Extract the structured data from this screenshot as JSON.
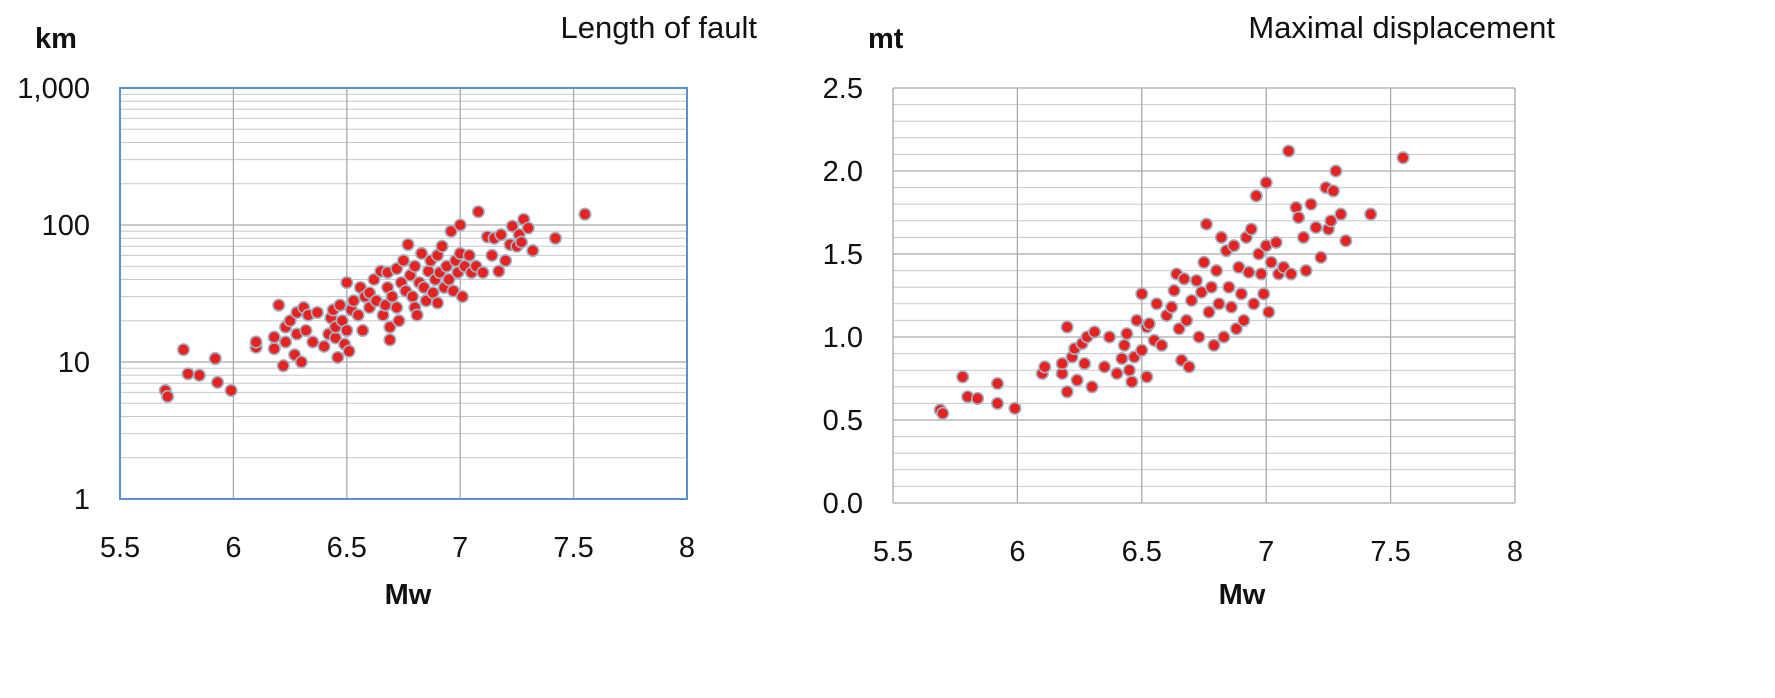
{
  "colors": {
    "point_fill": "#e8231f",
    "point_stroke": "#9fb3c9",
    "left_border": "#5b8fcf",
    "grid": "#a9a9a9"
  },
  "chart_data": [
    {
      "type": "scatter",
      "title": "Length of fault",
      "xlabel": "Mw",
      "ylabel": "km",
      "yscale": "log",
      "xlim": [
        5.5,
        8
      ],
      "ylim": [
        1,
        1000
      ],
      "xticks": [
        "5.5",
        "6",
        "6.5",
        "7",
        "7.5",
        "8"
      ],
      "yticks": [
        "1",
        "10",
        "100",
        "1,000"
      ],
      "grid": true,
      "legend": "none",
      "points": [
        [
          5.7,
          6.2
        ],
        [
          5.71,
          5.6
        ],
        [
          5.78,
          12.3
        ],
        [
          5.8,
          8.2
        ],
        [
          5.85,
          8.0
        ],
        [
          5.92,
          10.6
        ],
        [
          5.93,
          7.1
        ],
        [
          5.99,
          6.2
        ],
        [
          6.1,
          12.8
        ],
        [
          6.1,
          14.0
        ],
        [
          6.18,
          12.5
        ],
        [
          6.18,
          15.2
        ],
        [
          6.2,
          26.0
        ],
        [
          6.22,
          9.4
        ],
        [
          6.23,
          14.0
        ],
        [
          6.23,
          18.0
        ],
        [
          6.25,
          20.0
        ],
        [
          6.27,
          11.3
        ],
        [
          6.28,
          16.0
        ],
        [
          6.28,
          23.0
        ],
        [
          6.3,
          10.0
        ],
        [
          6.31,
          25.0
        ],
        [
          6.32,
          17.0
        ],
        [
          6.33,
          22.0
        ],
        [
          6.35,
          14.0
        ],
        [
          6.37,
          23.0
        ],
        [
          6.4,
          13.0
        ],
        [
          6.42,
          16.0
        ],
        [
          6.43,
          21.0
        ],
        [
          6.44,
          24.0
        ],
        [
          6.45,
          15.0
        ],
        [
          6.45,
          18.0
        ],
        [
          6.46,
          10.8
        ],
        [
          6.47,
          26.0
        ],
        [
          6.48,
          20.0
        ],
        [
          6.49,
          13.5
        ],
        [
          6.5,
          17.0
        ],
        [
          6.5,
          38.0
        ],
        [
          6.51,
          12.0
        ],
        [
          6.52,
          24.0
        ],
        [
          6.53,
          28.0
        ],
        [
          6.55,
          22.0
        ],
        [
          6.56,
          35.0
        ],
        [
          6.57,
          17.0
        ],
        [
          6.58,
          30.0
        ],
        [
          6.6,
          25.0
        ],
        [
          6.6,
          32.0
        ],
        [
          6.62,
          40.0
        ],
        [
          6.63,
          28.0
        ],
        [
          6.65,
          46.0
        ],
        [
          6.66,
          22.0
        ],
        [
          6.67,
          26.0
        ],
        [
          6.68,
          35.0
        ],
        [
          6.68,
          45.0
        ],
        [
          6.69,
          18.0
        ],
        [
          6.69,
          14.5
        ],
        [
          6.7,
          30.0
        ],
        [
          6.72,
          48.0
        ],
        [
          6.72,
          25.0
        ],
        [
          6.73,
          20.0
        ],
        [
          6.74,
          38.0
        ],
        [
          6.75,
          55.0
        ],
        [
          6.76,
          33.0
        ],
        [
          6.77,
          72.0
        ],
        [
          6.78,
          43.0
        ],
        [
          6.79,
          30.0
        ],
        [
          6.8,
          50.0
        ],
        [
          6.8,
          25.0
        ],
        [
          6.81,
          22.0
        ],
        [
          6.82,
          38.0
        ],
        [
          6.83,
          62.0
        ],
        [
          6.84,
          35.0
        ],
        [
          6.85,
          28.0
        ],
        [
          6.86,
          46.0
        ],
        [
          6.87,
          55.0
        ],
        [
          6.88,
          32.0
        ],
        [
          6.89,
          40.0
        ],
        [
          6.9,
          60.0
        ],
        [
          6.9,
          27.0
        ],
        [
          6.91,
          45.0
        ],
        [
          6.92,
          70.0
        ],
        [
          6.93,
          35.0
        ],
        [
          6.94,
          50.0
        ],
        [
          6.95,
          40.0
        ],
        [
          6.96,
          90.0
        ],
        [
          6.97,
          33.0
        ],
        [
          6.98,
          55.0
        ],
        [
          6.99,
          45.0
        ],
        [
          7.0,
          100.0
        ],
        [
          7.0,
          62.0
        ],
        [
          7.01,
          30.0
        ],
        [
          7.02,
          50.0
        ],
        [
          7.04,
          60.0
        ],
        [
          7.05,
          45.0
        ],
        [
          7.07,
          50.0
        ],
        [
          7.08,
          125.0
        ],
        [
          7.1,
          45.0
        ],
        [
          7.12,
          82.0
        ],
        [
          7.14,
          60.0
        ],
        [
          7.15,
          80.0
        ],
        [
          7.17,
          46.0
        ],
        [
          7.18,
          85.0
        ],
        [
          7.2,
          55.0
        ],
        [
          7.22,
          72.0
        ],
        [
          7.23,
          98.0
        ],
        [
          7.25,
          70.0
        ],
        [
          7.26,
          85.0
        ],
        [
          7.27,
          75.0
        ],
        [
          7.28,
          110.0
        ],
        [
          7.3,
          95.0
        ],
        [
          7.32,
          65.0
        ],
        [
          7.42,
          80.0
        ],
        [
          7.55,
          120.0
        ]
      ]
    },
    {
      "type": "scatter",
      "title": "Maximal displacement",
      "xlabel": "Mw",
      "ylabel": "mt",
      "yscale": "linear",
      "xlim": [
        5.5,
        8
      ],
      "ylim": [
        0,
        2.5
      ],
      "xticks": [
        "5.5",
        "6",
        "6.5",
        "7",
        "7.5",
        "8"
      ],
      "yticks": [
        "0.0",
        "0.5",
        "1.0",
        "1.5",
        "2.0",
        "2.5"
      ],
      "grid": true,
      "legend": "none",
      "points": [
        [
          5.69,
          0.56
        ],
        [
          5.7,
          0.54
        ],
        [
          5.78,
          0.76
        ],
        [
          5.8,
          0.64
        ],
        [
          5.84,
          0.63
        ],
        [
          5.92,
          0.72
        ],
        [
          5.92,
          0.6
        ],
        [
          5.99,
          0.57
        ],
        [
          6.1,
          0.78
        ],
        [
          6.11,
          0.82
        ],
        [
          6.18,
          0.78
        ],
        [
          6.18,
          0.84
        ],
        [
          6.2,
          1.06
        ],
        [
          6.2,
          0.67
        ],
        [
          6.22,
          0.88
        ],
        [
          6.23,
          0.93
        ],
        [
          6.24,
          0.74
        ],
        [
          6.26,
          0.96
        ],
        [
          6.27,
          0.84
        ],
        [
          6.28,
          1.0
        ],
        [
          6.3,
          0.7
        ],
        [
          6.31,
          1.03
        ],
        [
          6.35,
          0.82
        ],
        [
          6.37,
          1.0
        ],
        [
          6.4,
          0.78
        ],
        [
          6.42,
          0.87
        ],
        [
          6.43,
          0.95
        ],
        [
          6.44,
          1.02
        ],
        [
          6.45,
          0.8
        ],
        [
          6.46,
          0.73
        ],
        [
          6.47,
          0.88
        ],
        [
          6.48,
          1.1
        ],
        [
          6.5,
          0.92
        ],
        [
          6.5,
          1.26
        ],
        [
          6.52,
          0.76
        ],
        [
          6.52,
          1.06
        ],
        [
          6.53,
          1.08
        ],
        [
          6.55,
          0.98
        ],
        [
          6.56,
          1.2
        ],
        [
          6.58,
          0.95
        ],
        [
          6.6,
          1.13
        ],
        [
          6.62,
          1.18
        ],
        [
          6.63,
          1.28
        ],
        [
          6.64,
          1.38
        ],
        [
          6.65,
          1.05
        ],
        [
          6.66,
          0.86
        ],
        [
          6.67,
          1.35
        ],
        [
          6.68,
          1.1
        ],
        [
          6.69,
          0.82
        ],
        [
          6.7,
          1.22
        ],
        [
          6.72,
          1.34
        ],
        [
          6.73,
          1.0
        ],
        [
          6.74,
          1.27
        ],
        [
          6.75,
          1.45
        ],
        [
          6.76,
          1.68
        ],
        [
          6.77,
          1.15
        ],
        [
          6.78,
          1.3
        ],
        [
          6.79,
          0.95
        ],
        [
          6.8,
          1.4
        ],
        [
          6.81,
          1.2
        ],
        [
          6.82,
          1.6
        ],
        [
          6.83,
          1.0
        ],
        [
          6.84,
          1.52
        ],
        [
          6.85,
          1.3
        ],
        [
          6.86,
          1.18
        ],
        [
          6.87,
          1.55
        ],
        [
          6.88,
          1.05
        ],
        [
          6.89,
          1.42
        ],
        [
          6.9,
          1.26
        ],
        [
          6.91,
          1.1
        ],
        [
          6.92,
          1.6
        ],
        [
          6.93,
          1.39
        ],
        [
          6.94,
          1.65
        ],
        [
          6.95,
          1.2
        ],
        [
          6.96,
          1.85
        ],
        [
          6.97,
          1.5
        ],
        [
          6.98,
          1.38
        ],
        [
          6.99,
          1.26
        ],
        [
          7.0,
          1.55
        ],
        [
          7.0,
          1.93
        ],
        [
          7.01,
          1.15
        ],
        [
          7.02,
          1.45
        ],
        [
          7.04,
          1.57
        ],
        [
          7.05,
          1.38
        ],
        [
          7.07,
          1.42
        ],
        [
          7.09,
          2.12
        ],
        [
          7.1,
          1.38
        ],
        [
          7.12,
          1.78
        ],
        [
          7.13,
          1.72
        ],
        [
          7.15,
          1.6
        ],
        [
          7.16,
          1.4
        ],
        [
          7.18,
          1.8
        ],
        [
          7.2,
          1.66
        ],
        [
          7.22,
          1.48
        ],
        [
          7.24,
          1.9
        ],
        [
          7.25,
          1.65
        ],
        [
          7.26,
          1.7
        ],
        [
          7.27,
          1.88
        ],
        [
          7.28,
          2.0
        ],
        [
          7.3,
          1.74
        ],
        [
          7.32,
          1.58
        ],
        [
          7.42,
          1.74
        ],
        [
          7.55,
          2.08
        ]
      ]
    }
  ]
}
